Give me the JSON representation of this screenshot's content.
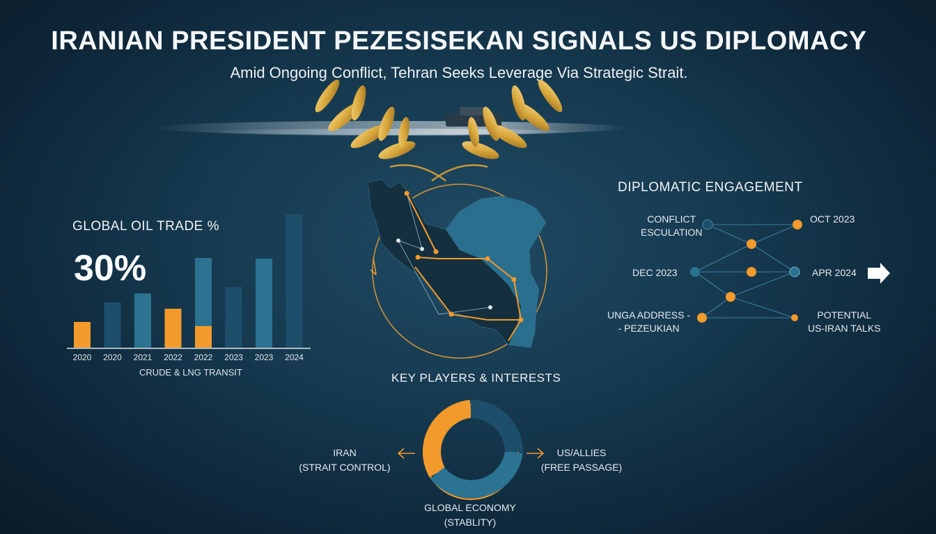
{
  "header": {
    "title": "IRANIAN PRESIDENT PEZESISEKAN SIGNALS US DIPLOMACY",
    "subtitle": "Amid Ongoing Conflict, Tehran Seeks Leverage Via Strategic Strait."
  },
  "oil_chart": {
    "heading": "GLOBAL OIL TRADE %",
    "highlight_value": "30%",
    "caption": "CRUDE & LNG TRANSIT"
  },
  "chart_data": {
    "type": "bar",
    "categories": [
      "2020",
      "2020",
      "2021",
      "2022",
      "2022",
      "2023",
      "2023",
      "2024"
    ],
    "series": [
      {
        "values": [
          37,
          65,
          78,
          56,
          129,
          87,
          128,
          192
        ],
        "colors": [
          "#f39a2c",
          "#1d4f6b",
          "#2b7391",
          "#f39a2c",
          "#2b7391",
          "#1d4f6b",
          "#2b7391",
          "#1d4f6b"
        ]
      },
      {
        "values": [
          0,
          0,
          0,
          0,
          31,
          0,
          0,
          0
        ],
        "colors": [
          "#f39a2c",
          "#f39a2c",
          "#f39a2c",
          "#f39a2c",
          "#f39a2c",
          "#f39a2c",
          "#f39a2c",
          "#f39a2c"
        ]
      }
    ],
    "title": "GLOBAL OIL TRADE %",
    "xlabel": "CRUDE & LNG TRANSIT",
    "ylabel": "",
    "ylim": [
      0,
      200
    ],
    "grid": false,
    "legend": "none"
  },
  "diplomacy": {
    "heading": "DIPLOMATIC ENGAGEMENT",
    "nodes": {
      "conflict": "CONFLICT\nESCULATION",
      "oct": "OCT 2023",
      "dec": "DEC 2023",
      "apr": "APR 2024",
      "unga": "UNGA ADDRESS -\n- PEZEUKIAN",
      "talks": "POTENTIAL\nUS-IRAN TALKS"
    }
  },
  "players": {
    "heading": "KEY PLAYERS & INTERESTS",
    "iran": "IRAN\n(STRAIT CONTROL)",
    "us": "US/ALLIES\n(FREE PASSAGE)",
    "global": "GLOBAL ECONOMY\n(STABLITY)"
  },
  "colors": {
    "accent_orange": "#f39a2c",
    "teal": "#2b7391",
    "dark_teal": "#1d4f6b",
    "gold": "#d9a83e"
  }
}
